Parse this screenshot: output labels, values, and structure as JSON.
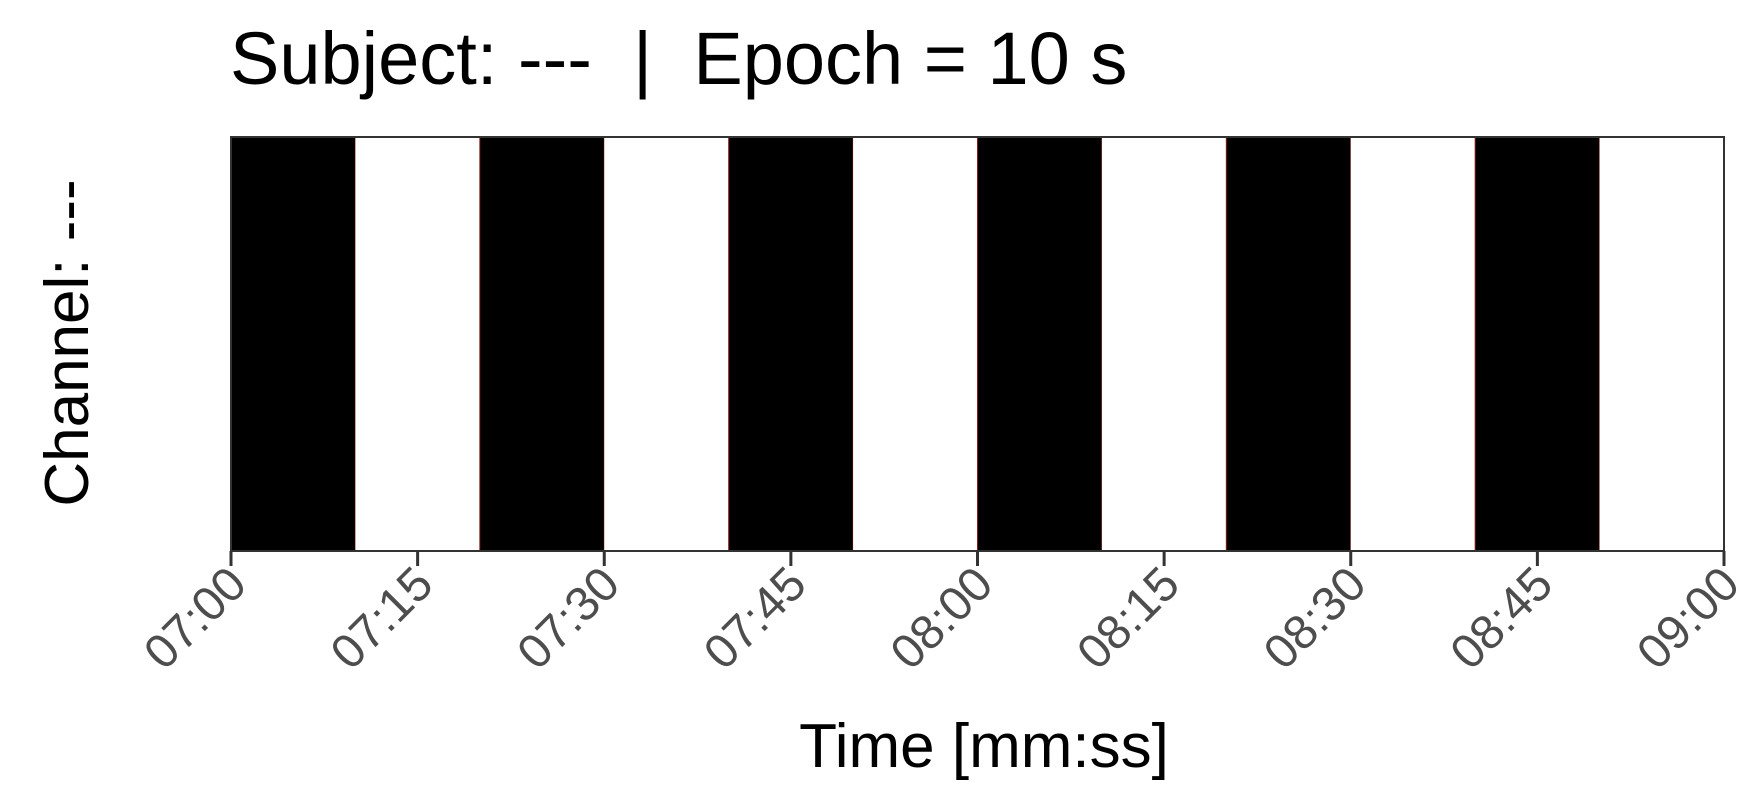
{
  "chart_data": {
    "type": "heatmap",
    "title": "Subject: ---  |  Epoch = 10 s",
    "xlabel": "Time [mm:ss]",
    "ylabel": "Channel: ---",
    "xlim": [
      "07:00",
      "09:00"
    ],
    "x_ticks": [
      "07:00",
      "07:15",
      "07:30",
      "07:45",
      "08:00",
      "08:15",
      "08:30",
      "08:45",
      "09:00"
    ],
    "epoch_seconds": 10,
    "epochs": [
      {
        "start": "07:00",
        "end": "07:10",
        "value": 1
      },
      {
        "start": "07:10",
        "end": "07:20",
        "value": 0
      },
      {
        "start": "07:20",
        "end": "07:30",
        "value": 1
      },
      {
        "start": "07:30",
        "end": "07:40",
        "value": 0
      },
      {
        "start": "07:40",
        "end": "07:50",
        "value": 1
      },
      {
        "start": "07:50",
        "end": "08:00",
        "value": 0
      },
      {
        "start": "08:00",
        "end": "08:10",
        "value": 1
      },
      {
        "start": "08:10",
        "end": "08:20",
        "value": 0
      },
      {
        "start": "08:20",
        "end": "08:30",
        "value": 1
      },
      {
        "start": "08:30",
        "end": "08:40",
        "value": 0
      },
      {
        "start": "08:40",
        "end": "08:50",
        "value": 1
      },
      {
        "start": "08:50",
        "end": "09:00",
        "value": 0
      }
    ],
    "colors": {
      "1": "#000000",
      "0": "#ffffff"
    },
    "grid": false,
    "legend": "none"
  }
}
